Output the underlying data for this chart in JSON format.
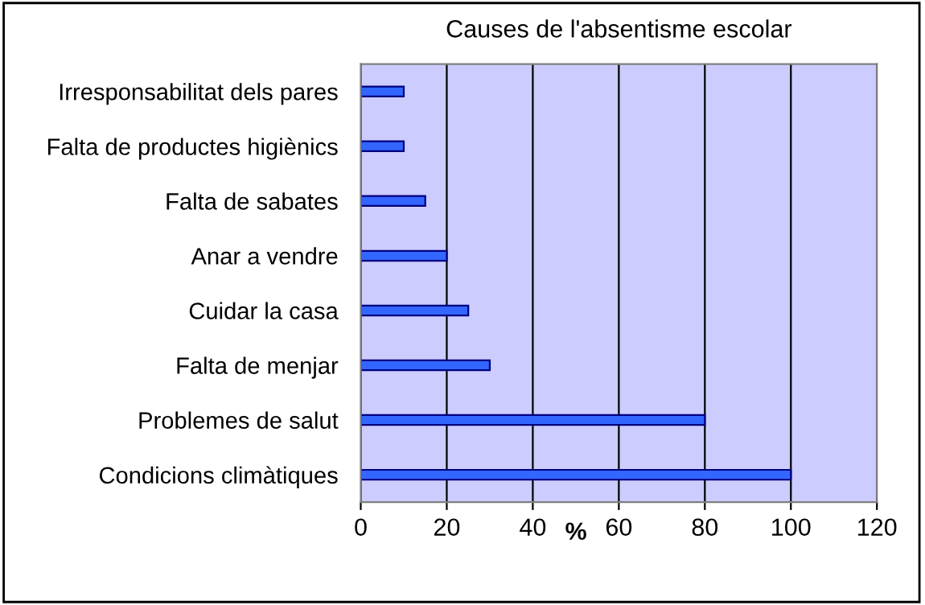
{
  "chart_data": {
    "type": "bar",
    "orientation": "horizontal",
    "title": "Causes de l'absentisme escolar",
    "xlabel": "%",
    "categories": [
      "Irresponsabilitat dels pares",
      "Falta de productes higiènics",
      "Falta de sabates",
      "Anar a vendre",
      "Cuidar la casa",
      "Falta de menjar",
      "Problemes de salut",
      "Condicions climàtiques"
    ],
    "values": [
      10,
      10,
      15,
      20,
      25,
      30,
      80,
      100
    ],
    "color": "#3366ff",
    "xlim": [
      0,
      120
    ],
    "xticks": [
      0,
      20,
      40,
      60,
      80,
      100,
      120
    ],
    "grid": "x"
  }
}
